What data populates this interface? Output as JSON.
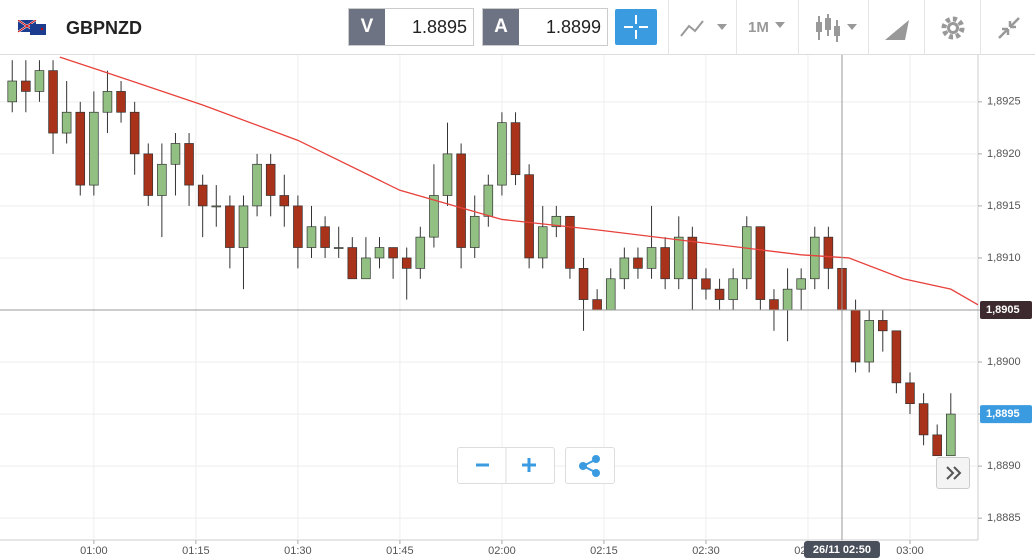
{
  "header": {
    "symbol": "GBPNZD",
    "sell_label": "V",
    "sell_price": "1.8895",
    "buy_label": "A",
    "buy_price": "1.8899",
    "timeframe": "1M"
  },
  "chart_data": {
    "type": "candlestick",
    "x": [
      48,
      50,
      52,
      54,
      56,
      58,
      60,
      62,
      64,
      66,
      68,
      70,
      72,
      74,
      76,
      78,
      80,
      82,
      84,
      86,
      88,
      90,
      92,
      94,
      96,
      98,
      100,
      102,
      104,
      106,
      108,
      110,
      112,
      114,
      116,
      118,
      120,
      122,
      124,
      126,
      128,
      130,
      132,
      134,
      136,
      138,
      140,
      142,
      144,
      146,
      148,
      150,
      152,
      154,
      156,
      158,
      160,
      162,
      164,
      166,
      168,
      170,
      172,
      174,
      176,
      178,
      180,
      182,
      184,
      186
    ],
    "open": [
      1.8925,
      1.8927,
      1.8926,
      1.8928,
      1.8922,
      1.8924,
      1.8917,
      1.8924,
      1.8926,
      1.8924,
      1.892,
      1.8916,
      1.8919,
      1.8921,
      1.8917,
      1.8915,
      1.8915,
      1.8911,
      1.8915,
      1.8919,
      1.8916,
      1.8915,
      1.8911,
      1.8913,
      1.8911,
      1.8911,
      1.8908,
      1.891,
      1.8911,
      1.891,
      1.8909,
      1.8912,
      1.8916,
      1.892,
      1.8911,
      1.8914,
      1.8917,
      1.8923,
      1.8918,
      1.891,
      1.8913,
      1.8914,
      1.8909,
      1.8906,
      1.8905,
      1.8908,
      1.891,
      1.8909,
      1.8911,
      1.8908,
      1.8912,
      1.8908,
      1.8907,
      1.8906,
      1.8908,
      1.8913,
      1.8906,
      1.8905,
      1.8907,
      1.8908,
      1.8912,
      1.8909,
      1.8905,
      1.89,
      1.8904,
      1.8903,
      1.8898,
      1.8896,
      1.8893,
      1.8891
    ],
    "high": [
      1.8929,
      1.8929,
      1.8929,
      1.8929,
      1.8927,
      1.8925,
      1.8926,
      1.8928,
      1.8927,
      1.8925,
      1.8921,
      1.8921,
      1.8922,
      1.8922,
      1.8918,
      1.8917,
      1.8916,
      1.8916,
      1.892,
      1.892,
      1.8918,
      1.8916,
      1.8915,
      1.8914,
      1.8913,
      1.8912,
      1.8912,
      1.8912,
      1.8911,
      1.8911,
      1.8913,
      1.8919,
      1.8923,
      1.8921,
      1.8916,
      1.8918,
      1.8924,
      1.8924,
      1.8919,
      1.8915,
      1.8915,
      1.8914,
      1.891,
      1.8907,
      1.8909,
      1.8911,
      1.8911,
      1.8915,
      1.8912,
      1.8914,
      1.8913,
      1.8909,
      1.8908,
      1.8909,
      1.8914,
      1.8913,
      1.8907,
      1.8909,
      1.8909,
      1.8913,
      1.8913,
      1.891,
      1.8906,
      1.8905,
      1.8905,
      1.8903,
      1.8899,
      1.8897,
      1.8894,
      1.8897
    ],
    "low": [
      1.8924,
      1.8924,
      1.8925,
      1.892,
      1.8921,
      1.8916,
      1.8916,
      1.8922,
      1.8923,
      1.8918,
      1.8915,
      1.8912,
      1.8916,
      1.8915,
      1.8912,
      1.8913,
      1.8909,
      1.8907,
      1.8914,
      1.8914,
      1.8913,
      1.8909,
      1.891,
      1.891,
      1.891,
      1.8908,
      1.8908,
      1.8909,
      1.8908,
      1.8906,
      1.8908,
      1.8911,
      1.8915,
      1.8909,
      1.891,
      1.8913,
      1.8916,
      1.8917,
      1.8909,
      1.8909,
      1.8912,
      1.8908,
      1.8903,
      1.8905,
      1.8905,
      1.8907,
      1.8908,
      1.8908,
      1.8907,
      1.8907,
      1.8905,
      1.8906,
      1.8905,
      1.8905,
      1.8907,
      1.8905,
      1.8903,
      1.8902,
      1.8905,
      1.8907,
      1.8907,
      1.8904,
      1.8899,
      1.8899,
      1.8901,
      1.8897,
      1.8895,
      1.8892,
      1.8891,
      1.8891
    ],
    "close": [
      1.8927,
      1.8926,
      1.8928,
      1.8922,
      1.8924,
      1.8917,
      1.8924,
      1.8926,
      1.8924,
      1.892,
      1.8916,
      1.8919,
      1.8921,
      1.8917,
      1.8915,
      1.8915,
      1.8911,
      1.8915,
      1.8919,
      1.8916,
      1.8915,
      1.8911,
      1.8913,
      1.8911,
      1.8911,
      1.8908,
      1.891,
      1.8911,
      1.891,
      1.8909,
      1.8912,
      1.8916,
      1.892,
      1.8911,
      1.8914,
      1.8917,
      1.8923,
      1.8918,
      1.891,
      1.8913,
      1.8914,
      1.8909,
      1.8906,
      1.8905,
      1.8908,
      1.891,
      1.8909,
      1.8911,
      1.8908,
      1.8912,
      1.8908,
      1.8907,
      1.8906,
      1.8908,
      1.8913,
      1.8906,
      1.8905,
      1.8907,
      1.8908,
      1.8912,
      1.8909,
      1.8905,
      1.89,
      1.8904,
      1.8903,
      1.8898,
      1.8896,
      1.8893,
      1.8891,
      1.8895
    ],
    "up_color": "#92c083",
    "down_color": "#a9321a",
    "ma": {
      "color": "#e8413c",
      "x": [
        55,
        61,
        76,
        90,
        105,
        120,
        134,
        149,
        164,
        171,
        179,
        186,
        190
      ],
      "values": [
        1.89293,
        1.8928,
        1.89247,
        1.89213,
        1.89165,
        1.89137,
        1.89127,
        1.89115,
        1.89103,
        1.891,
        1.8908,
        1.8907,
        1.89055
      ]
    },
    "xlim": [
      46.2,
      190
    ],
    "xticks": [
      {
        "value": 60,
        "label": "01:00"
      },
      {
        "value": 75,
        "label": "01:15"
      },
      {
        "value": 90,
        "label": "01:30"
      },
      {
        "value": 105,
        "label": "01:45"
      },
      {
        "value": 120,
        "label": "02:00"
      },
      {
        "value": 135,
        "label": "02:15"
      },
      {
        "value": 150,
        "label": "02:30"
      },
      {
        "value": 165,
        "label": "02:45"
      },
      {
        "value": 180,
        "label": "03:00"
      }
    ],
    "ylim": [
      1.88829,
      1.89295
    ],
    "yticks": [
      {
        "value": 1.8885,
        "label": "1,8885"
      },
      {
        "value": 1.889,
        "label": "1,8890"
      },
      {
        "value": 1.8895,
        "label": "1,8895"
      },
      {
        "value": 1.89,
        "label": "1,8900"
      },
      {
        "value": 1.8905,
        "label": "1,8905"
      },
      {
        "value": 1.891,
        "label": "1,8910"
      },
      {
        "value": 1.8915,
        "label": "1,8915"
      },
      {
        "value": 1.892,
        "label": "1,8920"
      },
      {
        "value": 1.8925,
        "label": "1,8925"
      }
    ],
    "grid": true,
    "crosshair": {
      "x": 170,
      "x_label": "26/11 02:50",
      "y": 1.8905,
      "y_label": "1,8905"
    },
    "last_price": {
      "value": 1.8895,
      "label": "1,8895"
    }
  }
}
